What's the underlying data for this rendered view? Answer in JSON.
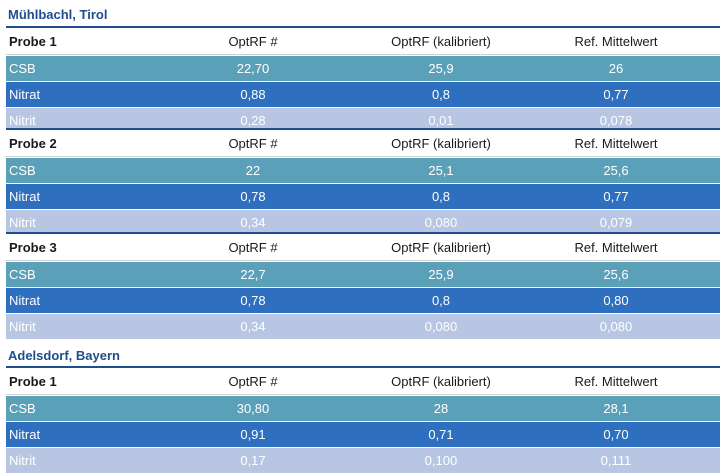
{
  "headers": {
    "col_value": "OptRF #",
    "col_calibrated": "OptRF (kalibriert)",
    "col_reference": "Ref. Mittelwert"
  },
  "locations": [
    {
      "title": "Mühlbachl, Tirol",
      "samples": [
        {
          "label": "Probe 1",
          "rows": [
            {
              "name": "CSB",
              "optrf": "22,70",
              "kalibriert": "25,9",
              "ref": "26"
            },
            {
              "name": "Nitrat",
              "optrf": "0,88",
              "kalibriert": "0,8",
              "ref": "0,77"
            },
            {
              "name": "Nitrit",
              "optrf": "0,28",
              "kalibriert": "0,01",
              "ref": "0,078"
            }
          ]
        },
        {
          "label": "Probe 2",
          "rows": [
            {
              "name": "CSB",
              "optrf": "22",
              "kalibriert": "25,1",
              "ref": "25,6"
            },
            {
              "name": "Nitrat",
              "optrf": "0,78",
              "kalibriert": "0,8",
              "ref": "0,77"
            },
            {
              "name": "Nitrit",
              "optrf": "0,34",
              "kalibriert": "0,080",
              "ref": "0,079"
            }
          ]
        },
        {
          "label": "Probe 3",
          "rows": [
            {
              "name": "CSB",
              "optrf": "22,7",
              "kalibriert": "25,9",
              "ref": "25,6"
            },
            {
              "name": "Nitrat",
              "optrf": "0,78",
              "kalibriert": "0,8",
              "ref": "0,80"
            },
            {
              "name": "Nitrit",
              "optrf": "0,34",
              "kalibriert": "0,080",
              "ref": "0,080"
            }
          ]
        }
      ]
    },
    {
      "title": "Adelsdorf, Bayern",
      "samples": [
        {
          "label": "Probe 1",
          "rows": [
            {
              "name": "CSB",
              "optrf": "30,80",
              "kalibriert": "28",
              "ref": "28,1"
            },
            {
              "name": "Nitrat",
              "optrf": "0,91",
              "kalibriert": "0,71",
              "ref": "0,70"
            },
            {
              "name": "Nitrit",
              "optrf": "0,17",
              "kalibriert": "0,100",
              "ref": "0,111"
            }
          ]
        }
      ]
    }
  ]
}
